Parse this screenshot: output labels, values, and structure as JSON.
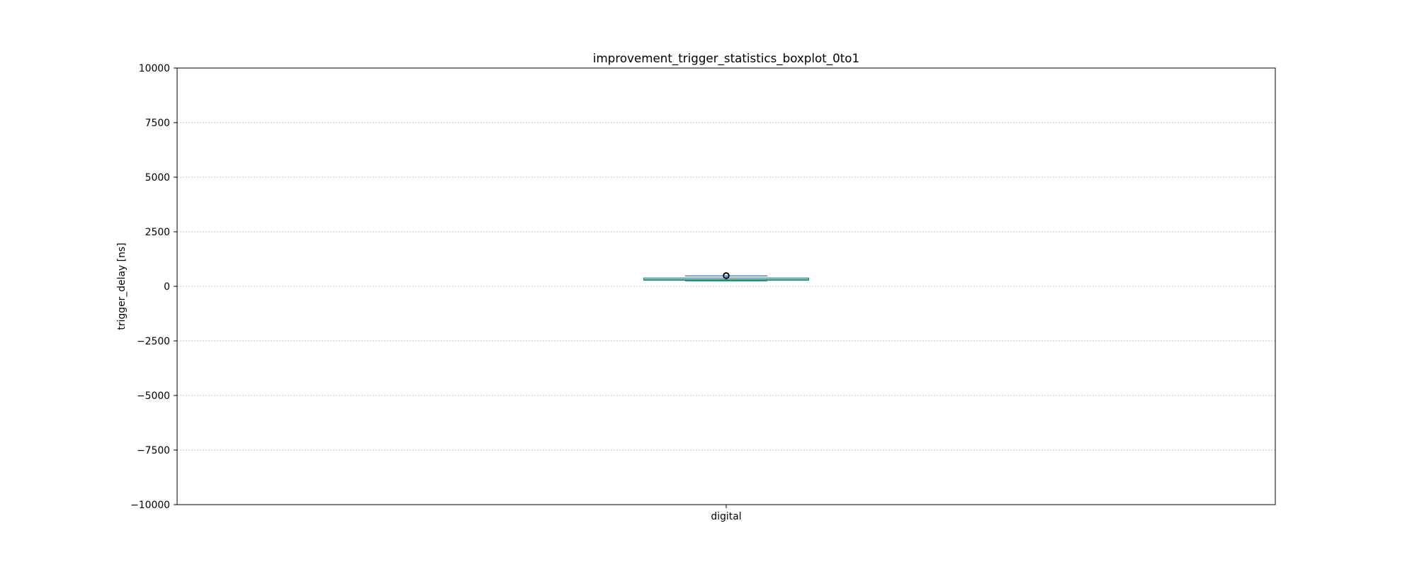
{
  "chart_data": {
    "type": "box",
    "title": "improvement_trigger_statistics_boxplot_0to1",
    "xlabel": "",
    "ylabel": "trigger_delay [ns]",
    "ylim": [
      -10000,
      10000
    ],
    "yticks": [
      10000,
      7500,
      5000,
      2500,
      0,
      -2500,
      -5000,
      -7500,
      -10000
    ],
    "ytick_labels": [
      "10000",
      "7500",
      "5000",
      "2500",
      "0",
      "−2500",
      "−5000",
      "−7500",
      "−10000"
    ],
    "grid": {
      "y": true,
      "x": false
    },
    "categories": [
      "digital"
    ],
    "boxes": [
      {
        "category": "digital",
        "whisker_low": 250,
        "q1": 280,
        "median": 310,
        "q3": 380,
        "whisker_high": 480,
        "outliers": [
          490
        ]
      }
    ],
    "colors": {
      "box": "#1f77b4",
      "median": "#2ca02c",
      "grid": "#b0b0b0",
      "axes": "#000000",
      "outlier": "#000000"
    }
  }
}
